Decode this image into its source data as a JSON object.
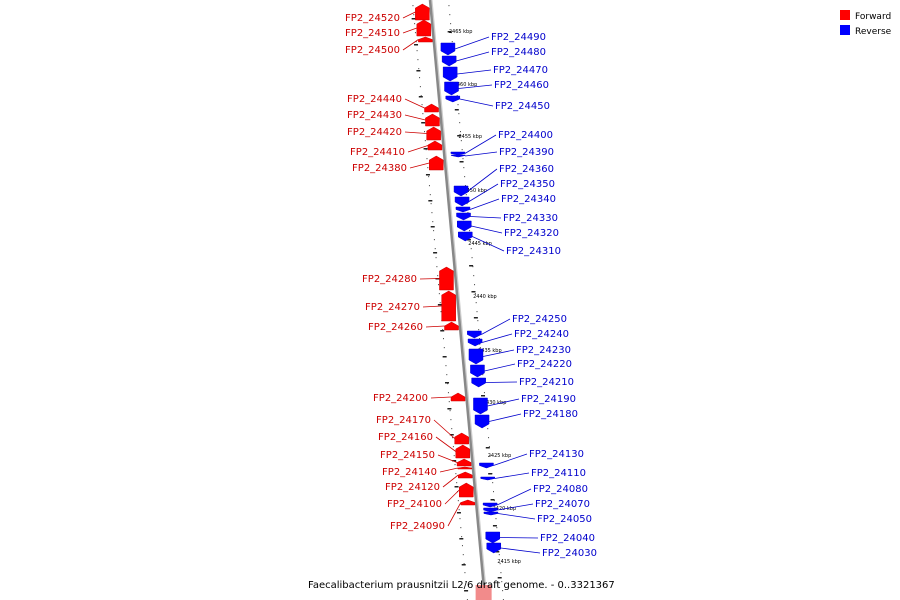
{
  "caption": "Faecalibacterium prausnitzii L2/6 draft genome. - 0..3321367",
  "legend": [
    {
      "label": "Forward",
      "color": "#ff0000"
    },
    {
      "label": "Reverse",
      "color": "#0000ff"
    }
  ],
  "colors": {
    "forward": "#ff0000",
    "reverse": "#0000ff",
    "forward_text": "#cc0000",
    "reverse_text": "#0000cc",
    "axis": "#888888"
  },
  "ticks": [
    "2465 kbp",
    "2460 kbp",
    "2455 kbp",
    "2450 kbp",
    "2445 kbp",
    "2440 kbp",
    "2435 kbp",
    "2430 kbp",
    "2425 kbp",
    "2420 kbp",
    "2415 kbp"
  ],
  "forward_genes": [
    "FP2_24520",
    "FP2_24510",
    "FP2_24500",
    "FP2_24440",
    "FP2_24430",
    "FP2_24420",
    "FP2_24410",
    "FP2_24380",
    "FP2_24280",
    "FP2_24270",
    "FP2_24260",
    "FP2_24200",
    "FP2_24170",
    "FP2_24160",
    "FP2_24150",
    "FP2_24140",
    "FP2_24120",
    "FP2_24100",
    "FP2_24090"
  ],
  "reverse_genes": [
    "FP2_24490",
    "FP2_24480",
    "FP2_24470",
    "FP2_24460",
    "FP2_24450",
    "FP2_24400",
    "FP2_24390",
    "FP2_24360",
    "FP2_24350",
    "FP2_24340",
    "FP2_24330",
    "FP2_24320",
    "FP2_24310",
    "FP2_24250",
    "FP2_24240",
    "FP2_24230",
    "FP2_24220",
    "FP2_24210",
    "FP2_24190",
    "FP2_24180",
    "FP2_24130",
    "FP2_24110",
    "FP2_24080",
    "FP2_24070",
    "FP2_24050",
    "FP2_24040",
    "FP2_24030"
  ]
}
